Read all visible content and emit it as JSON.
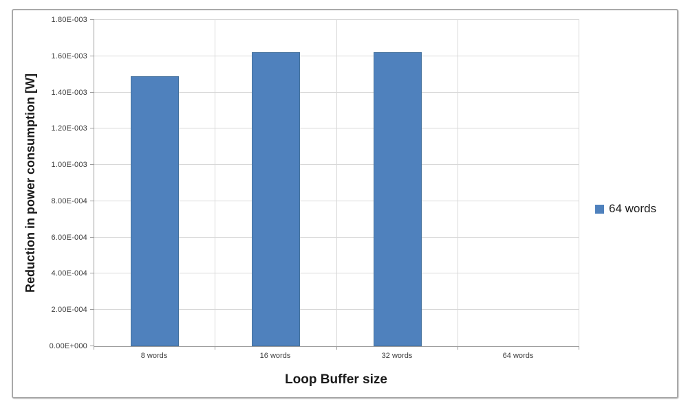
{
  "chart_data": {
    "type": "bar",
    "title": "",
    "xlabel": "Loop Buffer size",
    "ylabel": "Reduction in power consumption [W]",
    "categories": [
      "8 words",
      "16 words",
      "32 words",
      "64 words"
    ],
    "series": [
      {
        "name": "64 words",
        "values": [
          0.00149,
          0.00162,
          0.00162,
          0
        ]
      }
    ],
    "ylim": [
      0,
      0.0018
    ],
    "ytick_step": 0.0002,
    "ytick_labels": [
      "0.00E+000",
      "2.00E-004",
      "4.00E-004",
      "6.00E-004",
      "8.00E-004",
      "1.00E-003",
      "1.20E-003",
      "1.40E-003",
      "1.60E-003",
      "1.80E-003"
    ],
    "grid": true,
    "legend": {
      "position": "right",
      "entries": [
        "64 words"
      ]
    },
    "colors": {
      "bar_fill": "#4F81BD",
      "bar_border": "#44719D",
      "gridline": "#D8D8D8",
      "axis_line": "#9C9C9C",
      "tick_text": "#3B3B3B",
      "title_text": "#1A1A1A",
      "frame_border": "#A9A9A9"
    }
  }
}
